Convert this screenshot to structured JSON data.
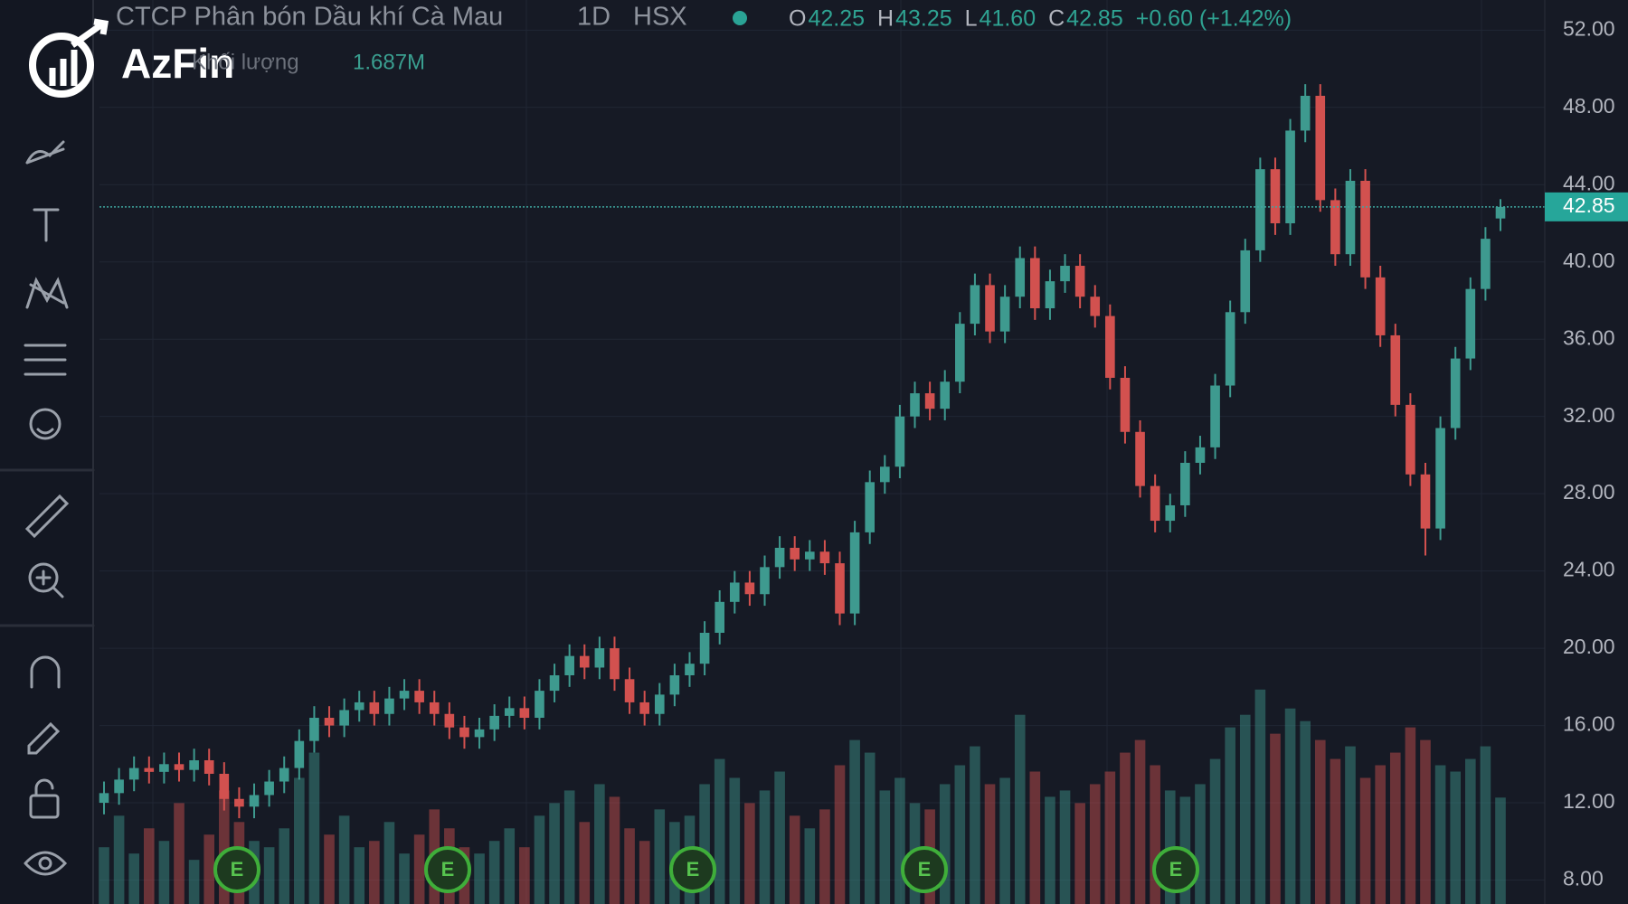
{
  "chart_data": {
    "type": "candlestick",
    "title": "CTCP Phân bón Dầu khí Cà Mau",
    "interval": "1D",
    "exchange": "HSX",
    "ohlc": [
      {
        "key": "O",
        "label": "42.25"
      },
      {
        "key": "H",
        "label": "43.25"
      },
      {
        "key": "L",
        "label": "41.60"
      },
      {
        "key": "C",
        "label": "42.85"
      }
    ],
    "change": "+0.60 (+1.42%)",
    "logo": "AzFin",
    "up_color": "#3e9a8f",
    "down_color": "#d2514f",
    "open": [
      12.0,
      12.5,
      13.2,
      13.8,
      13.6,
      14.0,
      13.7,
      14.2,
      13.5,
      12.2,
      11.8,
      12.4,
      13.1,
      13.8,
      15.2,
      16.4,
      16.0,
      16.8,
      17.2,
      16.6,
      17.4,
      17.8,
      17.2,
      16.6,
      15.9,
      15.4,
      15.8,
      16.5,
      16.9,
      16.4,
      17.8,
      18.6,
      19.6,
      19.0,
      20.0,
      18.4,
      17.2,
      16.6,
      17.6,
      18.6,
      19.2,
      20.8,
      22.4,
      23.4,
      22.8,
      24.2,
      25.2,
      24.6,
      25.0,
      24.4,
      21.8,
      26.0,
      28.6,
      29.4,
      32.0,
      33.2,
      32.4,
      33.8,
      36.8,
      38.8,
      36.4,
      38.2,
      40.2,
      37.6,
      39.0,
      39.8,
      38.2,
      37.2,
      34.0,
      31.2,
      28.4,
      26.6,
      27.4,
      29.6,
      30.4,
      33.6,
      37.4,
      40.6,
      44.8,
      42.0,
      46.8,
      48.6,
      43.2,
      40.4,
      44.2,
      39.2,
      36.2,
      32.6,
      29.0,
      26.2,
      31.4,
      35.0,
      38.6,
      42.25
    ],
    "high": [
      13.1,
      13.8,
      14.4,
      14.4,
      14.6,
      14.6,
      14.8,
      14.8,
      14.1,
      12.8,
      13.0,
      13.7,
      14.4,
      15.8,
      17.0,
      17.0,
      17.4,
      17.8,
      17.8,
      18.0,
      18.4,
      18.4,
      17.8,
      17.2,
      16.5,
      16.4,
      17.1,
      17.5,
      17.5,
      18.4,
      19.2,
      20.2,
      20.2,
      20.6,
      20.6,
      19.0,
      17.8,
      18.2,
      19.2,
      19.8,
      21.4,
      23.0,
      24.0,
      24.0,
      24.8,
      25.8,
      25.8,
      25.6,
      25.6,
      25.0,
      26.6,
      29.2,
      30.0,
      32.6,
      33.8,
      33.8,
      34.4,
      37.4,
      39.4,
      39.4,
      38.8,
      40.8,
      40.8,
      39.6,
      40.4,
      40.4,
      38.8,
      37.8,
      34.6,
      31.8,
      29.0,
      28.0,
      30.2,
      31.0,
      34.2,
      38.0,
      41.2,
      45.4,
      45.4,
      47.4,
      49.2,
      49.2,
      43.8,
      44.8,
      44.8,
      39.8,
      36.8,
      33.2,
      29.6,
      32.0,
      35.6,
      39.2,
      41.8,
      43.25
    ],
    "low": [
      11.4,
      11.9,
      12.6,
      13.0,
      13.0,
      13.1,
      13.1,
      12.9,
      11.6,
      11.2,
      11.2,
      11.8,
      12.5,
      13.2,
      14.6,
      15.4,
      15.4,
      16.2,
      16.0,
      16.0,
      16.8,
      16.6,
      16.0,
      15.3,
      14.8,
      14.8,
      15.2,
      15.9,
      15.8,
      15.8,
      17.2,
      18.0,
      18.4,
      18.4,
      17.8,
      16.6,
      16.0,
      16.0,
      17.0,
      18.0,
      18.6,
      20.2,
      21.8,
      22.2,
      22.2,
      23.6,
      24.0,
      24.0,
      23.8,
      21.2,
      21.2,
      25.4,
      28.0,
      28.8,
      31.4,
      31.8,
      31.8,
      33.2,
      36.2,
      35.8,
      35.8,
      37.6,
      37.0,
      37.0,
      38.4,
      37.6,
      36.6,
      33.4,
      30.6,
      27.8,
      26.0,
      26.0,
      26.8,
      29.0,
      29.8,
      33.0,
      36.8,
      40.0,
      41.4,
      41.4,
      46.2,
      42.6,
      39.8,
      39.8,
      38.6,
      35.6,
      32.0,
      28.4,
      24.8,
      25.6,
      30.8,
      34.4,
      38.0,
      41.6
    ],
    "close": [
      12.5,
      13.2,
      13.8,
      13.6,
      14.0,
      13.7,
      14.2,
      13.5,
      12.2,
      11.8,
      12.4,
      13.1,
      13.8,
      15.2,
      16.4,
      16.0,
      16.8,
      17.2,
      16.6,
      17.4,
      17.8,
      17.2,
      16.6,
      15.9,
      15.4,
      15.8,
      16.5,
      16.9,
      16.4,
      17.8,
      18.6,
      19.6,
      19.0,
      20.0,
      18.4,
      17.2,
      16.6,
      17.6,
      18.6,
      19.2,
      20.8,
      22.4,
      23.4,
      22.8,
      24.2,
      25.2,
      24.6,
      25.0,
      24.4,
      21.8,
      26.0,
      28.6,
      29.4,
      32.0,
      33.2,
      32.4,
      33.8,
      36.8,
      38.8,
      36.4,
      38.2,
      40.2,
      37.6,
      39.0,
      39.8,
      38.2,
      37.2,
      34.0,
      31.2,
      28.4,
      26.6,
      27.4,
      29.6,
      30.4,
      33.6,
      37.4,
      40.6,
      44.8,
      42.0,
      46.8,
      48.6,
      43.2,
      40.4,
      44.2,
      39.2,
      36.2,
      32.6,
      29.0,
      26.2,
      31.4,
      35.0,
      38.6,
      41.2,
      42.85
    ],
    "volume": {
      "name": "Khối lượng",
      "last_label": "1.687M",
      "values": [
        0.9,
        1.4,
        0.8,
        1.2,
        1.0,
        1.6,
        0.7,
        1.1,
        1.8,
        1.3,
        1.0,
        0.9,
        1.2,
        2.0,
        2.4,
        1.1,
        1.4,
        0.9,
        1.0,
        1.3,
        0.8,
        1.1,
        1.5,
        1.2,
        0.9,
        0.8,
        1.0,
        1.2,
        0.9,
        1.4,
        1.6,
        1.8,
        1.3,
        1.9,
        1.7,
        1.2,
        1.0,
        1.5,
        1.3,
        1.4,
        1.9,
        2.3,
        2.0,
        1.6,
        1.8,
        2.1,
        1.4,
        1.2,
        1.5,
        2.2,
        2.6,
        2.4,
        1.8,
        2.0,
        1.6,
        1.5,
        1.9,
        2.2,
        2.5,
        1.9,
        2.0,
        3.0,
        2.1,
        1.7,
        1.8,
        1.6,
        1.9,
        2.1,
        2.4,
        2.6,
        2.2,
        1.8,
        1.7,
        1.9,
        2.3,
        2.8,
        3.0,
        3.4,
        2.7,
        3.1,
        2.9,
        2.6,
        2.3,
        2.5,
        2.0,
        2.2,
        2.4,
        2.8,
        2.6,
        2.2,
        2.1,
        2.3,
        2.5,
        1.687
      ]
    },
    "ylim": [
      6.76,
      53.56
    ],
    "y2lim": [
      0,
      4.3
    ],
    "yticks": [
      {
        "value": 8,
        "label": "8.00"
      },
      {
        "value": 12,
        "label": "12.00"
      },
      {
        "value": 16,
        "label": "16.00"
      },
      {
        "value": 20,
        "label": "20.00"
      },
      {
        "value": 24,
        "label": "24.00"
      },
      {
        "value": 28,
        "label": "28.00"
      },
      {
        "value": 32,
        "label": "32.00"
      },
      {
        "value": 36,
        "label": "36.00"
      },
      {
        "value": 40,
        "label": "40.00"
      },
      {
        "value": 44,
        "label": "44.00"
      },
      {
        "value": 48,
        "label": "48.00"
      },
      {
        "value": 52,
        "label": "52.00"
      }
    ],
    "events": [
      "E",
      "E",
      "E",
      "E",
      "E"
    ],
    "grid": true
  }
}
